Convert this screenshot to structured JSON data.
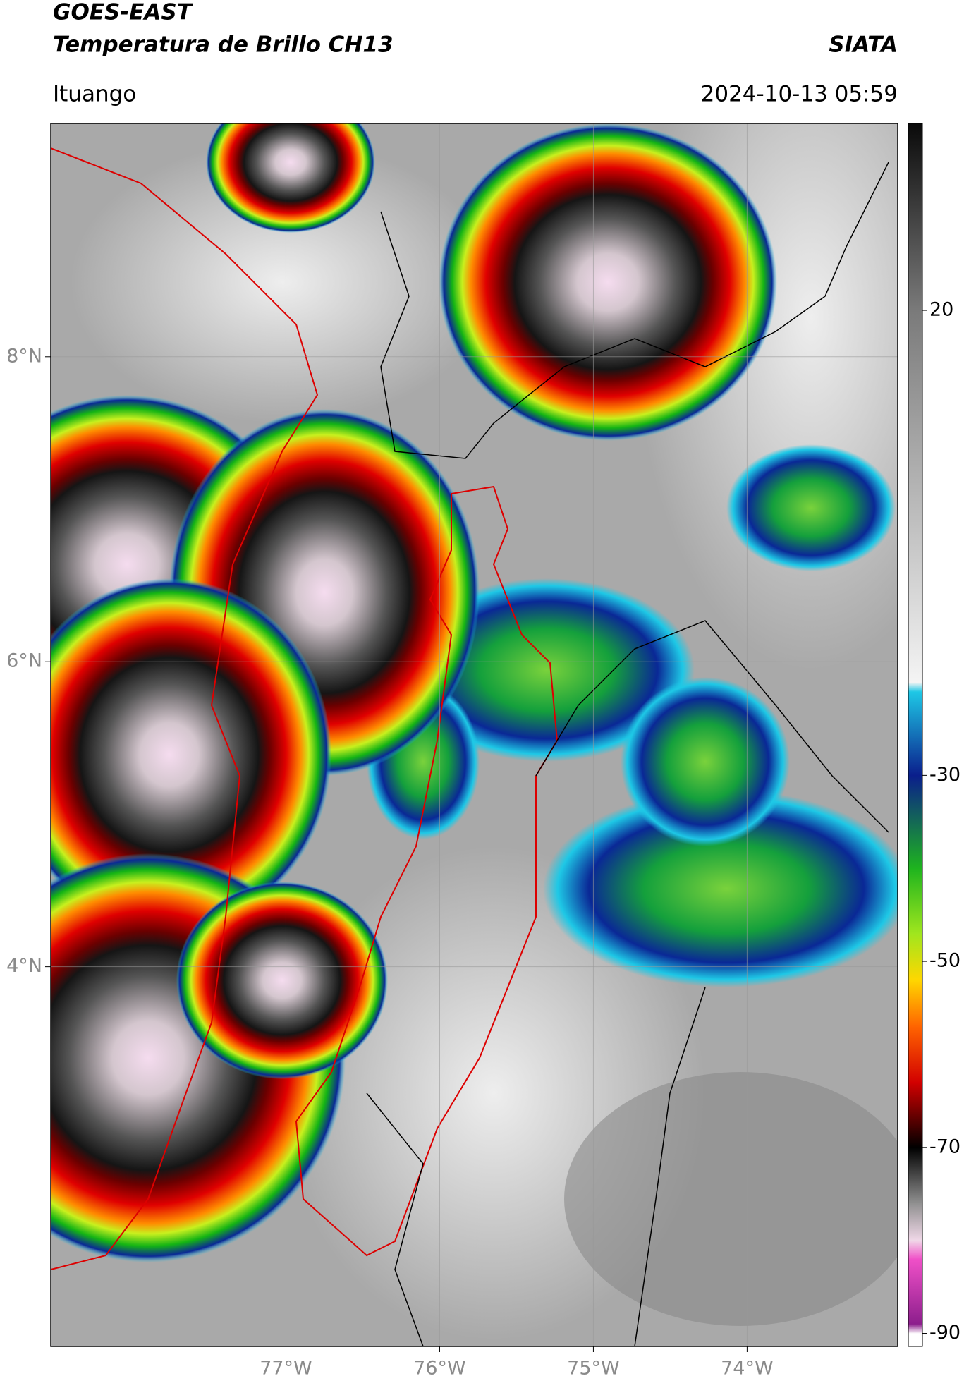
{
  "header": {
    "title": "GOES-EAST",
    "subtitle": "Temperatura de Brillo CH13",
    "source": "SIATA",
    "location": "Ituango",
    "datetime": "2024-10-13 05:59"
  },
  "map": {
    "xlim": [
      -78.53,
      -73.02
    ],
    "ylim": [
      1.51,
      9.53
    ],
    "xticks": [
      {
        "value": -77,
        "label": "77°W"
      },
      {
        "value": -76,
        "label": "76°W"
      },
      {
        "value": -75,
        "label": "75°W"
      },
      {
        "value": -74,
        "label": "74°W"
      }
    ],
    "yticks": [
      {
        "value": 8,
        "label": "8°N"
      },
      {
        "value": 6,
        "label": "6°N"
      },
      {
        "value": 4,
        "label": "4°N"
      }
    ],
    "grid": true
  },
  "colorbar": {
    "lim": [
      -91.4,
      40.1
    ],
    "ticks": [
      20,
      -30,
      -50,
      -70,
      -90
    ],
    "stops": [
      {
        "value": 40.1,
        "color": "#0a0a0a"
      },
      {
        "value": 20,
        "color": "#7a7a7a"
      },
      {
        "value": -20,
        "color": "#f4f4f4"
      },
      {
        "value": -21,
        "color": "#1ec8e6"
      },
      {
        "value": -30,
        "color": "#0a1e8c"
      },
      {
        "value": -40,
        "color": "#1eb41e"
      },
      {
        "value": -47,
        "color": "#a0e61e"
      },
      {
        "value": -52,
        "color": "#ffd700"
      },
      {
        "value": -57,
        "color": "#ff6400"
      },
      {
        "value": -63,
        "color": "#d20000"
      },
      {
        "value": -68,
        "color": "#3c0000"
      },
      {
        "value": -70,
        "color": "#000000"
      },
      {
        "value": -76,
        "color": "#909090"
      },
      {
        "value": -80,
        "color": "#f0d8e8"
      },
      {
        "value": -82,
        "color": "#f050c8"
      },
      {
        "value": -89,
        "color": "#8c1e8c"
      },
      {
        "value": -90,
        "color": "#ffffff"
      },
      {
        "value": -91.4,
        "color": "#ffffff"
      }
    ]
  }
}
